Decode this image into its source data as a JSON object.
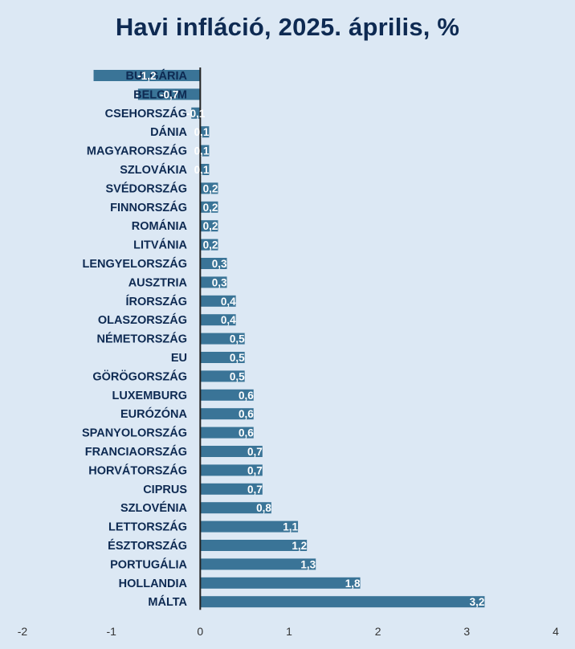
{
  "chart_data": {
    "type": "bar",
    "orientation": "horizontal",
    "title": "Havi infláció, 2025. április, %",
    "categories": [
      "BULGÁRIA",
      "BELGIUM",
      "CSEHORSZÁG",
      "DÁNIA",
      "MAGYARORSZÁG",
      "SZLOVÁKIA",
      "SVÉDORSZÁG",
      "FINNORSZÁG",
      "ROMÁNIA",
      "LITVÁNIA",
      "LENGYELORSZÁG",
      "AUSZTRIA",
      "ÍRORSZÁG",
      "OLASZORSZÁG",
      "NÉMETORSZÁG",
      "EU",
      "GÖRÖGORSZÁG",
      "LUXEMBURG",
      "EURÓZÓNA",
      "SPANYOLORSZÁG",
      "FRANCIAORSZÁG",
      "HORVÁTORSZÁG",
      "CIPRUS",
      "SZLOVÉNIA",
      "LETTORSZÁG",
      "ÉSZTORSZÁG",
      "PORTUGÁLIA",
      "HOLLANDIA",
      "MÁLTA"
    ],
    "values": [
      -1.2,
      -0.7,
      -0.1,
      0.1,
      0.1,
      0.1,
      0.2,
      0.2,
      0.2,
      0.2,
      0.3,
      0.3,
      0.4,
      0.4,
      0.5,
      0.5,
      0.5,
      0.6,
      0.6,
      0.6,
      0.7,
      0.7,
      0.7,
      0.8,
      1.1,
      1.2,
      1.3,
      1.8,
      3.2
    ],
    "value_labels": [
      "-1,2",
      "-0,7",
      "-0,1",
      "0,1",
      "0,1",
      "0,1",
      "0,2",
      "0,2",
      "0,2",
      "0,2",
      "0,3",
      "0,3",
      "0,4",
      "0,4",
      "0,5",
      "0,5",
      "0,5",
      "0,6",
      "0,6",
      "0,6",
      "0,7",
      "0,7",
      "0,7",
      "0,8",
      "1,1",
      "1,2",
      "1,3",
      "1,8",
      "3,2"
    ],
    "xlim": [
      -2,
      4
    ],
    "xticks": [
      "-2",
      "-1",
      "0",
      "1",
      "2",
      "3",
      "4"
    ],
    "grid": false,
    "legend": "none",
    "colors": {
      "background": "#dce8f4",
      "bar": "#3a7497",
      "axis": "#222222",
      "category_text": "#0e2a52",
      "value_text": "#ffffff",
      "title": "#0e2a52"
    }
  }
}
